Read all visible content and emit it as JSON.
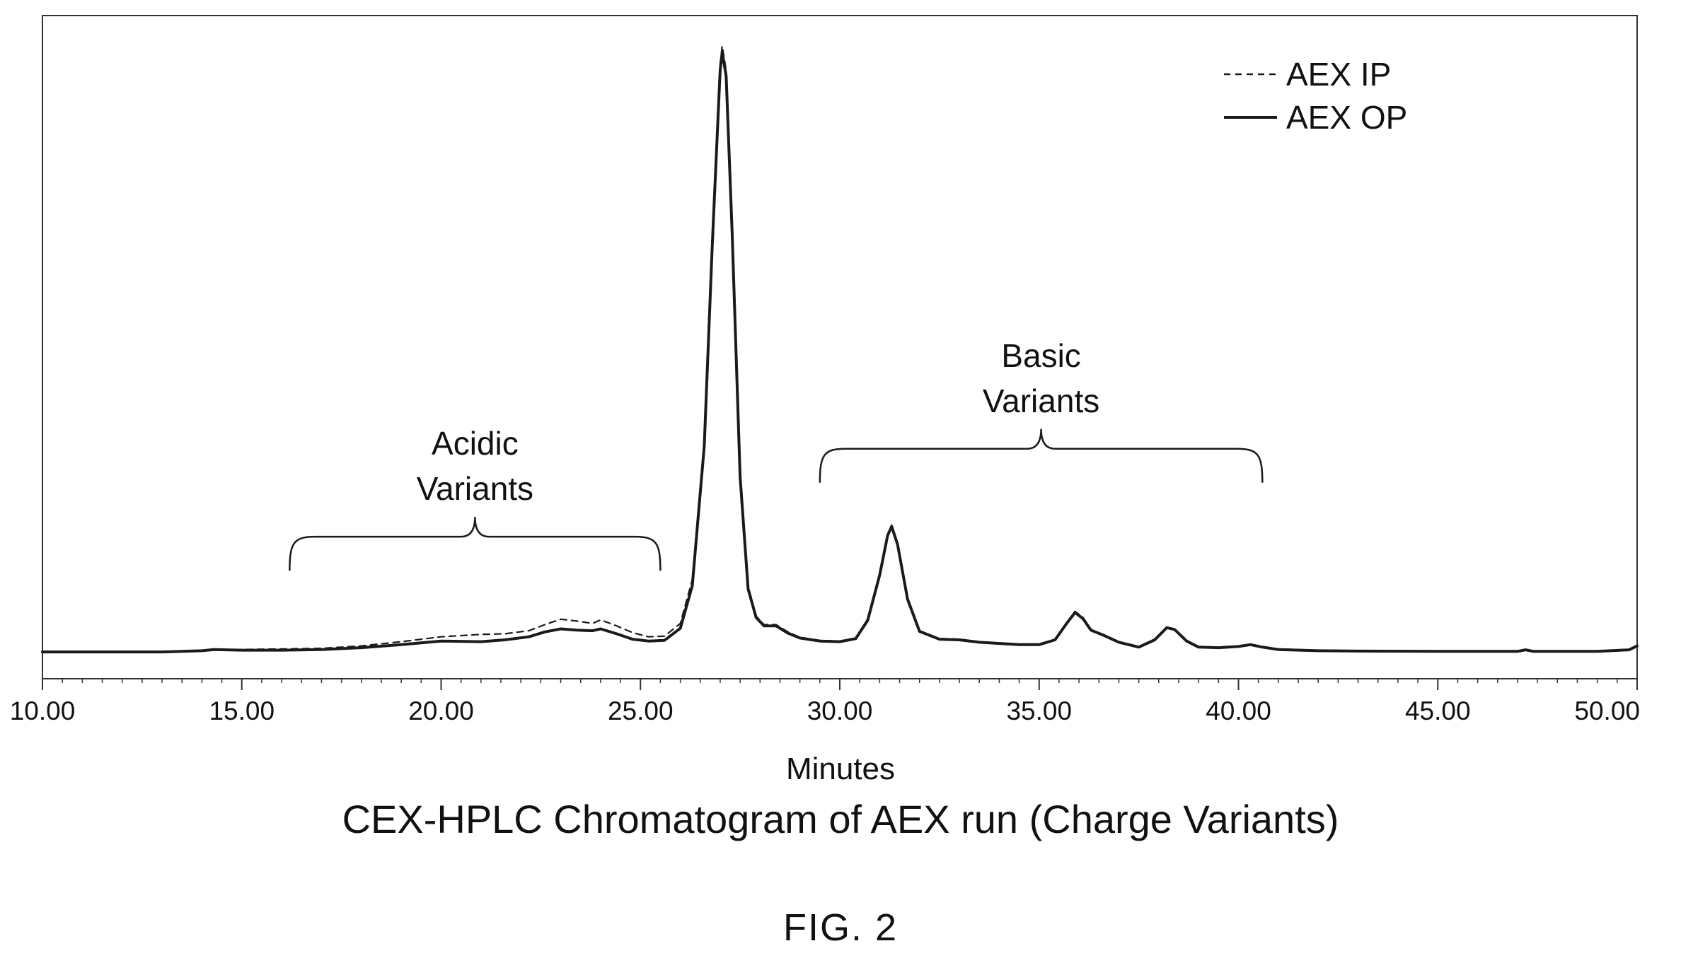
{
  "figure_label": "FIG. 2",
  "chart_data": {
    "type": "line",
    "title": "CEX-HPLC Chromatogram of AEX run (Charge Variants)",
    "xlabel": "Minutes",
    "ylabel": "",
    "xlim": [
      10,
      50
    ],
    "ylim": [
      0,
      100
    ],
    "x_ticks": [
      "10.00",
      "15.00",
      "20.00",
      "25.00",
      "30.00",
      "35.00",
      "40.00",
      "45.00",
      "50.00"
    ],
    "y_ticks_visible": false,
    "grid": false,
    "legend_position": "top-right",
    "series": [
      {
        "name": "AEX IP",
        "style": "dashed",
        "color": "#1a1a1a",
        "points": [
          [
            10.0,
            0.1
          ],
          [
            13.0,
            0.1
          ],
          [
            14.0,
            0.3
          ],
          [
            14.3,
            0.5
          ],
          [
            15.0,
            0.5
          ],
          [
            16.0,
            0.6
          ],
          [
            17.0,
            0.7
          ],
          [
            18.0,
            1.1
          ],
          [
            19.0,
            1.8
          ],
          [
            20.0,
            2.6
          ],
          [
            21.0,
            3.0
          ],
          [
            21.6,
            3.1
          ],
          [
            22.2,
            3.6
          ],
          [
            22.6,
            4.6
          ],
          [
            23.0,
            5.5
          ],
          [
            23.4,
            5.2
          ],
          [
            23.8,
            4.8
          ],
          [
            24.0,
            5.4
          ],
          [
            24.4,
            4.4
          ],
          [
            24.8,
            3.3
          ],
          [
            25.2,
            2.6
          ],
          [
            25.6,
            2.7
          ],
          [
            26.0,
            4.8
          ],
          [
            26.3,
            12.0
          ],
          [
            26.6,
            35.0
          ],
          [
            26.8,
            68.0
          ],
          [
            27.0,
            97.0
          ],
          [
            27.05,
            100.0
          ],
          [
            27.15,
            96.0
          ],
          [
            27.3,
            70.0
          ],
          [
            27.5,
            30.0
          ],
          [
            27.7,
            11.0
          ],
          [
            27.9,
            6.0
          ],
          [
            28.1,
            4.6
          ],
          [
            28.4,
            4.6
          ],
          [
            28.7,
            3.4
          ],
          [
            29.0,
            2.5
          ],
          [
            29.5,
            2.0
          ],
          [
            30.0,
            1.9
          ],
          [
            30.4,
            2.4
          ],
          [
            30.7,
            5.5
          ],
          [
            31.0,
            13.0
          ],
          [
            31.2,
            19.5
          ],
          [
            31.3,
            21.0
          ],
          [
            31.45,
            18.0
          ],
          [
            31.7,
            9.0
          ],
          [
            32.0,
            3.6
          ],
          [
            32.5,
            2.3
          ],
          [
            33.0,
            2.2
          ],
          [
            33.5,
            1.8
          ],
          [
            34.0,
            1.6
          ],
          [
            34.5,
            1.4
          ],
          [
            35.0,
            1.4
          ],
          [
            35.4,
            2.2
          ],
          [
            35.7,
            5.0
          ],
          [
            35.9,
            6.8
          ],
          [
            36.1,
            5.8
          ],
          [
            36.3,
            3.8
          ],
          [
            36.6,
            3.0
          ],
          [
            37.0,
            1.8
          ],
          [
            37.5,
            1.0
          ],
          [
            37.9,
            2.2
          ],
          [
            38.2,
            4.2
          ],
          [
            38.4,
            3.9
          ],
          [
            38.7,
            2.0
          ],
          [
            39.0,
            1.0
          ],
          [
            39.5,
            0.9
          ],
          [
            40.0,
            1.1
          ],
          [
            40.3,
            1.4
          ],
          [
            40.6,
            1.0
          ],
          [
            41.0,
            0.6
          ],
          [
            42.0,
            0.4
          ],
          [
            43.0,
            0.3
          ],
          [
            45.0,
            0.25
          ],
          [
            47.0,
            0.25
          ],
          [
            47.2,
            0.5
          ],
          [
            47.4,
            0.25
          ],
          [
            49.0,
            0.25
          ],
          [
            49.8,
            0.5
          ],
          [
            50.0,
            1.2
          ]
        ]
      },
      {
        "name": "AEX OP",
        "style": "solid",
        "color": "#1a1a1a",
        "points": [
          [
            10.0,
            0.1
          ],
          [
            13.0,
            0.1
          ],
          [
            14.0,
            0.3
          ],
          [
            14.3,
            0.5
          ],
          [
            15.0,
            0.4
          ],
          [
            16.0,
            0.4
          ],
          [
            17.0,
            0.5
          ],
          [
            18.0,
            0.8
          ],
          [
            19.0,
            1.3
          ],
          [
            20.0,
            1.9
          ],
          [
            21.0,
            1.8
          ],
          [
            21.6,
            2.1
          ],
          [
            22.2,
            2.6
          ],
          [
            22.6,
            3.4
          ],
          [
            23.0,
            3.9
          ],
          [
            23.4,
            3.7
          ],
          [
            23.8,
            3.6
          ],
          [
            24.0,
            3.9
          ],
          [
            24.4,
            3.1
          ],
          [
            24.8,
            2.2
          ],
          [
            25.2,
            1.9
          ],
          [
            25.6,
            2.0
          ],
          [
            26.0,
            4.0
          ],
          [
            26.3,
            11.0
          ],
          [
            26.6,
            34.0
          ],
          [
            26.8,
            67.0
          ],
          [
            27.0,
            96.0
          ],
          [
            27.05,
            99.0
          ],
          [
            27.15,
            95.0
          ],
          [
            27.3,
            69.0
          ],
          [
            27.5,
            29.0
          ],
          [
            27.7,
            10.5
          ],
          [
            27.9,
            5.8
          ],
          [
            28.1,
            4.4
          ],
          [
            28.4,
            4.4
          ],
          [
            28.7,
            3.2
          ],
          [
            29.0,
            2.4
          ],
          [
            29.5,
            1.9
          ],
          [
            30.0,
            1.8
          ],
          [
            30.4,
            2.3
          ],
          [
            30.7,
            5.3
          ],
          [
            31.0,
            12.8
          ],
          [
            31.2,
            19.3
          ],
          [
            31.3,
            20.8
          ],
          [
            31.45,
            17.8
          ],
          [
            31.7,
            8.8
          ],
          [
            32.0,
            3.5
          ],
          [
            32.5,
            2.2
          ],
          [
            33.0,
            2.1
          ],
          [
            33.5,
            1.7
          ],
          [
            34.0,
            1.5
          ],
          [
            34.5,
            1.3
          ],
          [
            35.0,
            1.3
          ],
          [
            35.4,
            2.1
          ],
          [
            35.7,
            4.9
          ],
          [
            35.9,
            6.6
          ],
          [
            36.1,
            5.6
          ],
          [
            36.3,
            3.7
          ],
          [
            36.6,
            2.9
          ],
          [
            37.0,
            1.7
          ],
          [
            37.5,
            0.9
          ],
          [
            37.9,
            2.1
          ],
          [
            38.2,
            4.1
          ],
          [
            38.4,
            3.8
          ],
          [
            38.7,
            1.9
          ],
          [
            39.0,
            0.9
          ],
          [
            39.5,
            0.8
          ],
          [
            40.0,
            1.0
          ],
          [
            40.3,
            1.3
          ],
          [
            40.6,
            0.9
          ],
          [
            41.0,
            0.5
          ],
          [
            42.0,
            0.3
          ],
          [
            43.0,
            0.25
          ],
          [
            45.0,
            0.2
          ],
          [
            47.0,
            0.2
          ],
          [
            47.2,
            0.45
          ],
          [
            47.4,
            0.2
          ],
          [
            49.0,
            0.2
          ],
          [
            49.8,
            0.45
          ],
          [
            50.0,
            1.1
          ]
        ]
      }
    ],
    "annotations": [
      {
        "id": "acidic",
        "lines": [
          "Acidic",
          "Variants"
        ],
        "bracket_x_range": [
          16.2,
          25.5
        ],
        "bracket_y": 13.5
      },
      {
        "id": "basic",
        "lines": [
          "Basic",
          "Variants"
        ],
        "bracket_x_range": [
          29.5,
          40.6
        ],
        "bracket_y": 28.0
      }
    ]
  }
}
